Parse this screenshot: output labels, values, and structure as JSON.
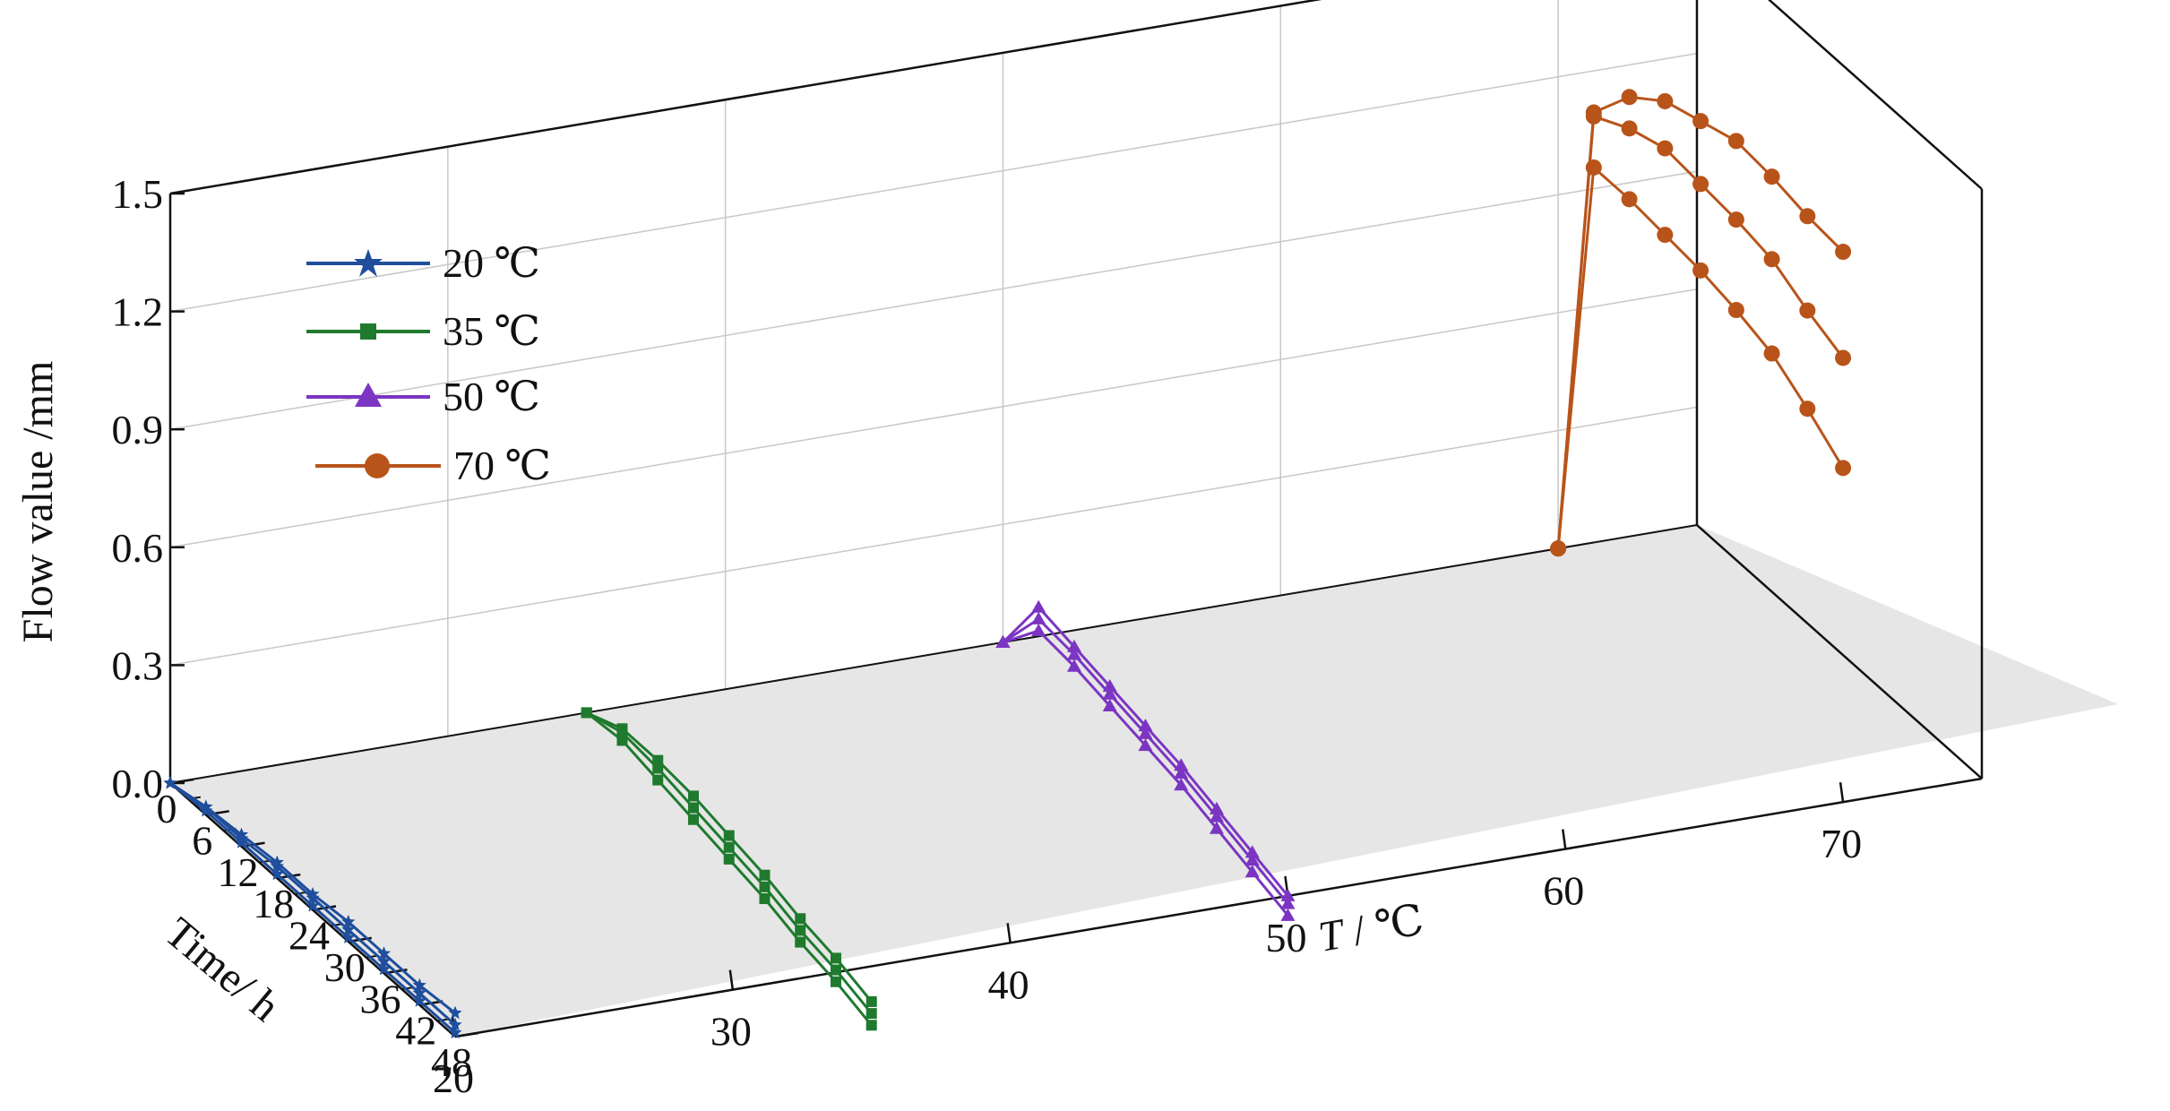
{
  "chart_data": {
    "type": "line",
    "subtype": "3d-waterfall",
    "title": "",
    "zlabel": "Flow value /mm",
    "xlabel_italic": "T",
    "xlabel_rest": " / ℃",
    "ylabel": "Time/ h",
    "z_ticks": [
      "0.0",
      "0.3",
      "0.6",
      "0.9",
      "1.2",
      "1.5"
    ],
    "x_ticks": [
      "20",
      "30",
      "40",
      "50",
      "60",
      "70"
    ],
    "y_ticks": [
      "0",
      "6",
      "12",
      "18",
      "24",
      "30",
      "36",
      "42",
      "48"
    ],
    "zlim": [
      0,
      1.5
    ],
    "ylim": [
      0,
      48
    ],
    "grid": true,
    "legend_position": "top-left",
    "legend": [
      {
        "label": "20 ℃",
        "color": "#1f4e9c",
        "marker": "star"
      },
      {
        "label": "35 ℃",
        "color": "#1f7a2e",
        "marker": "square"
      },
      {
        "label": "50 ℃",
        "color": "#7b35c2",
        "marker": "triangle"
      },
      {
        "label": "70 ℃",
        "color": "#b8541a",
        "marker": "circle"
      }
    ],
    "time_points": [
      0,
      6,
      12,
      18,
      24,
      30,
      36,
      42,
      48
    ],
    "series": [
      {
        "temperature": 20,
        "color": "#1f4e9c",
        "marker": "star",
        "values": [
          0.0,
          0.02,
          0.03,
          0.04,
          0.04,
          0.05,
          0.05,
          0.05,
          0.06
        ]
      },
      {
        "temperature": 20,
        "color": "#1f4e9c",
        "marker": "star",
        "values": [
          0.0,
          0.02,
          0.02,
          0.03,
          0.03,
          0.03,
          0.03,
          0.03,
          0.03
        ]
      },
      {
        "temperature": 20,
        "color": "#1f4e9c",
        "marker": "star",
        "values": [
          0.0,
          0.01,
          0.01,
          0.01,
          0.01,
          0.01,
          0.01,
          0.01,
          0.01
        ]
      },
      {
        "temperature": 35,
        "color": "#1f7a2e",
        "marker": "square",
        "values": [
          0.0,
          0.04,
          0.04,
          0.03,
          0.01,
          -0.01,
          -0.04,
          -0.06,
          -0.09
        ]
      },
      {
        "temperature": 35,
        "color": "#1f7a2e",
        "marker": "square",
        "values": [
          0.0,
          0.03,
          0.02,
          0.0,
          -0.02,
          -0.04,
          -0.07,
          -0.09,
          -0.12
        ]
      },
      {
        "temperature": 35,
        "color": "#1f7a2e",
        "marker": "square",
        "values": [
          0.0,
          0.01,
          -0.01,
          -0.03,
          -0.05,
          -0.07,
          -0.1,
          -0.12,
          -0.15
        ]
      },
      {
        "temperature": 50,
        "color": "#7b35c2",
        "marker": "triangle",
        "values": [
          0.0,
          0.17,
          0.15,
          0.13,
          0.11,
          0.09,
          0.06,
          0.03,
          0.0
        ]
      },
      {
        "temperature": 50,
        "color": "#7b35c2",
        "marker": "triangle",
        "values": [
          0.0,
          0.14,
          0.13,
          0.11,
          0.09,
          0.07,
          0.04,
          0.01,
          -0.02
        ]
      },
      {
        "temperature": 50,
        "color": "#7b35c2",
        "marker": "triangle",
        "values": [
          0.0,
          0.11,
          0.1,
          0.08,
          0.06,
          0.04,
          0.01,
          -0.02,
          -0.05
        ]
      },
      {
        "temperature": 70,
        "color": "#b8541a",
        "marker": "circle",
        "values": [
          0.0,
          1.19,
          1.31,
          1.38,
          1.41,
          1.44,
          1.43,
          1.41,
          1.4
        ]
      },
      {
        "temperature": 70,
        "color": "#b8541a",
        "marker": "circle",
        "values": [
          0.0,
          1.18,
          1.23,
          1.26,
          1.25,
          1.24,
          1.22,
          1.17,
          1.13
        ]
      },
      {
        "temperature": 70,
        "color": "#b8541a",
        "marker": "circle",
        "values": [
          0.0,
          1.05,
          1.05,
          1.04,
          1.03,
          1.01,
          0.98,
          0.92,
          0.85
        ]
      }
    ]
  }
}
